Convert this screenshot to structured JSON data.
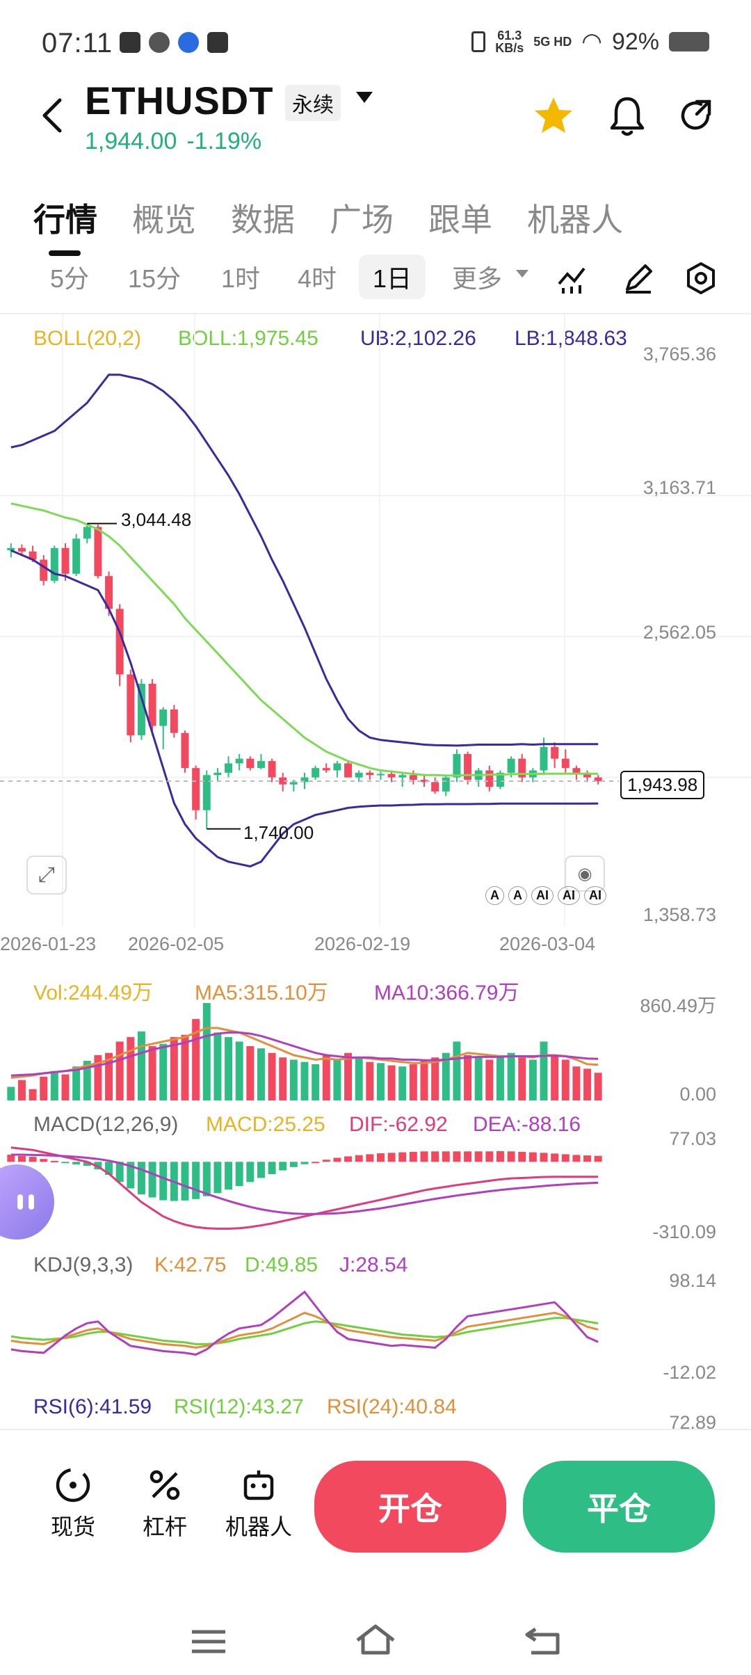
{
  "status_bar": {
    "time": "07:11",
    "net_speed": "61.3",
    "net_unit": "KB/s",
    "net_type": "5G HD",
    "battery": "92%"
  },
  "header": {
    "symbol": "ETHUSDT",
    "contract_type": "永续",
    "last_price": "1,944.00",
    "change_pct": "-1.19%"
  },
  "tabs": [
    "行情",
    "概览",
    "数据",
    "广场",
    "跟单",
    "机器人"
  ],
  "periods": [
    "5分",
    "15分",
    "1时",
    "4时",
    "1日",
    "更多"
  ],
  "main_chart": {
    "indicator": "BOLL(20,2)",
    "boll": "BOLL:1,975.45",
    "ub": "UB:2,102.26",
    "lb": "LB:1,848.63",
    "y_ticks": [
      "3,765.36",
      "3,163.71",
      "2,562.05",
      "1,358.73"
    ],
    "x_ticks": [
      "2026-01-23",
      "2026-02-05",
      "2026-02-19",
      "2026-03-04"
    ],
    "high_label": "3,044.48",
    "low_label": "1,740.00",
    "current_price": "1,943.98",
    "ai_labels": [
      "A",
      "A",
      "AI",
      "AI",
      "AI"
    ]
  },
  "volume": {
    "vol": "Vol:244.49万",
    "ma5": "MA5:315.10万",
    "ma10": "MA10:366.79万",
    "y_max": "860.49万",
    "y_min": "0.00"
  },
  "macd": {
    "name": "MACD(12,26,9)",
    "macd": "MACD:25.25",
    "dif": "DIF:-62.92",
    "dea": "DEA:-88.16",
    "y_max": "77.03",
    "y_min": "-310.09"
  },
  "kdj": {
    "name": "KDJ(9,3,3)",
    "k": "K:42.75",
    "d": "D:49.85",
    "j": "J:28.54",
    "y_max": "98.14",
    "y_min": "-12.02"
  },
  "rsi": {
    "rsi6": "RSI(6):41.59",
    "rsi12": "RSI(12):43.27",
    "rsi24": "RSI(24):40.84",
    "y_max": "72.89"
  },
  "bottom_nav": {
    "spot": "现货",
    "leverage": "杠杆",
    "bot": "机器人",
    "open": "开仓",
    "close": "平仓"
  },
  "colors": {
    "up": "#2ebd85",
    "down": "#f2495e",
    "boll_mid": "#7ed957",
    "boll_band": "#3b2a9e",
    "yellow": "#e6b422",
    "purple": "#b03fbf"
  },
  "chart_data": [
    {
      "type": "candlestick",
      "title": "",
      "x_ticks": [
        "2026-01-23",
        "2026-02-05",
        "2026-02-19",
        "2026-03-04"
      ],
      "ylim": [
        1358.73,
        3765.36
      ],
      "y_ticks": [
        1358.73,
        2562.05,
        3163.71,
        3765.36
      ],
      "candles": [
        [
          2930,
          2960,
          2900,
          2940
        ],
        [
          2940,
          2955,
          2905,
          2925
        ],
        [
          2925,
          2950,
          2880,
          2890
        ],
        [
          2890,
          2910,
          2780,
          2800
        ],
        [
          2800,
          2950,
          2790,
          2940
        ],
        [
          2940,
          2960,
          2800,
          2830
        ],
        [
          2830,
          3000,
          2820,
          2980
        ],
        [
          2980,
          3044.48,
          2960,
          3030
        ],
        [
          3030,
          3040,
          2810,
          2820
        ],
        [
          2820,
          2840,
          2650,
          2680
        ],
        [
          2680,
          2700,
          2350,
          2400
        ],
        [
          2400,
          2420,
          2110,
          2140
        ],
        [
          2140,
          2380,
          2120,
          2360
        ],
        [
          2360,
          2380,
          2140,
          2180
        ],
        [
          2180,
          2260,
          2080,
          2250
        ],
        [
          2250,
          2270,
          2130,
          2150
        ],
        [
          2150,
          2160,
          1980,
          2000
        ],
        [
          2000,
          2010,
          1780,
          1820
        ],
        [
          1820,
          1990,
          1740,
          1970
        ],
        [
          1970,
          2000,
          1940,
          1980
        ],
        [
          1980,
          2050,
          1960,
          2020
        ],
        [
          2020,
          2060,
          1990,
          2040
        ],
        [
          2040,
          2050,
          1990,
          2000
        ],
        [
          2000,
          2060,
          1995,
          2030
        ],
        [
          2030,
          2040,
          1940,
          1960
        ],
        [
          1960,
          1980,
          1900,
          1930
        ],
        [
          1930,
          1950,
          1900,
          1940
        ],
        [
          1940,
          1980,
          1910,
          1960
        ],
        [
          1960,
          2010,
          1950,
          2000
        ],
        [
          2000,
          2020,
          1980,
          1990
        ],
        [
          1990,
          2030,
          1960,
          2020
        ],
        [
          2020,
          2030,
          1960,
          1960
        ],
        [
          1960,
          1990,
          1940,
          1980
        ],
        [
          1980,
          1990,
          1950,
          1970
        ],
        [
          1970,
          1985,
          1950,
          1975
        ],
        [
          1975,
          1990,
          1940,
          1960
        ],
        [
          1960,
          1980,
          1920,
          1970
        ],
        [
          1970,
          1990,
          1930,
          1950
        ],
        [
          1950,
          1975,
          1920,
          1940
        ],
        [
          1940,
          1960,
          1890,
          1900
        ],
        [
          1900,
          1970,
          1880,
          1960
        ],
        [
          1960,
          2080,
          1940,
          2060
        ],
        [
          2060,
          2070,
          1930,
          1950
        ],
        [
          1950,
          2000,
          1920,
          1990
        ],
        [
          1990,
          2010,
          1900,
          1920
        ],
        [
          1920,
          1990,
          1910,
          1980
        ],
        [
          1980,
          2050,
          1960,
          2040
        ],
        [
          2040,
          2060,
          1940,
          1960
        ],
        [
          1960,
          2000,
          1940,
          1990
        ],
        [
          1990,
          2130,
          1970,
          2090
        ],
        [
          2090,
          2110,
          2000,
          2040
        ],
        [
          2040,
          2080,
          1980,
          2000
        ],
        [
          2000,
          2010,
          1950,
          1980
        ],
        [
          1980,
          1990,
          1940,
          1960
        ],
        [
          1960,
          1970,
          1930,
          1944
        ]
      ],
      "boll_upper": [
        3370,
        3380,
        3400,
        3420,
        3440,
        3480,
        3520,
        3560,
        3620,
        3680,
        3680,
        3670,
        3660,
        3640,
        3610,
        3570,
        3520,
        3460,
        3390,
        3320,
        3250,
        3170,
        3080,
        2990,
        2890,
        2800,
        2700,
        2600,
        2490,
        2380,
        2290,
        2210,
        2160,
        2130,
        2120,
        2115,
        2110,
        2105,
        2100,
        2098,
        2097,
        2096,
        2098,
        2100,
        2100,
        2100,
        2100,
        2102,
        2100,
        2102,
        2102,
        2102,
        2102,
        2102,
        2102.26
      ],
      "boll_mid": [
        3130,
        3120,
        3110,
        3100,
        3085,
        3070,
        3060,
        3040,
        3020,
        2990,
        2950,
        2900,
        2850,
        2800,
        2750,
        2700,
        2640,
        2590,
        2540,
        2490,
        2440,
        2390,
        2340,
        2290,
        2250,
        2210,
        2170,
        2130,
        2100,
        2070,
        2050,
        2030,
        2015,
        2000,
        1990,
        1985,
        1980,
        1975,
        1970,
        1970,
        1968,
        1968,
        1970,
        1970,
        1972,
        1972,
        1974,
        1975,
        1975,
        1976,
        1976,
        1976,
        1976,
        1976,
        1975.45
      ],
      "boll_lower": [
        2930,
        2910,
        2890,
        2860,
        2830,
        2820,
        2800,
        2780,
        2760,
        2680,
        2580,
        2450,
        2300,
        2150,
        2000,
        1850,
        1760,
        1700,
        1660,
        1620,
        1600,
        1590,
        1580,
        1600,
        1660,
        1720,
        1760,
        1780,
        1800,
        1810,
        1820,
        1830,
        1835,
        1838,
        1840,
        1840,
        1842,
        1843,
        1845,
        1845,
        1846,
        1846,
        1846,
        1847,
        1847,
        1848,
        1848,
        1848,
        1848,
        1848,
        1848,
        1848,
        1848,
        1848,
        1848.63
      ]
    },
    {
      "type": "bar",
      "title": "",
      "ylim": [
        0,
        860.49
      ],
      "values": [
        120,
        180,
        100,
        210,
        260,
        230,
        300,
        350,
        400,
        420,
        520,
        560,
        610,
        480,
        500,
        560,
        580,
        720,
        860.49,
        600,
        560,
        520,
        480,
        460,
        420,
        380,
        360,
        340,
        320,
        400,
        360,
        420,
        380,
        340,
        330,
        310,
        300,
        320,
        360,
        380,
        420,
        520,
        400,
        380,
        360,
        400,
        420,
        380,
        360,
        520,
        400,
        360,
        300,
        280,
        244.49
      ],
      "ma5": [
        200,
        210,
        220,
        240,
        250,
        260,
        280,
        310,
        330,
        360,
        400,
        440,
        480,
        500,
        520,
        540,
        560,
        600,
        640,
        640,
        620,
        600,
        560,
        520,
        480,
        440,
        400,
        380,
        360,
        370,
        360,
        370,
        380,
        370,
        360,
        350,
        340,
        330,
        330,
        340,
        360,
        390,
        420,
        410,
        400,
        390,
        390,
        390,
        380,
        400,
        400,
        390,
        360,
        320,
        315.1
      ],
      "ma10": [
        220,
        225,
        230,
        240,
        250,
        260,
        270,
        290,
        310,
        330,
        360,
        390,
        420,
        450,
        470,
        490,
        510,
        540,
        570,
        590,
        600,
        600,
        590,
        570,
        540,
        510,
        480,
        450,
        420,
        400,
        390,
        380,
        380,
        380,
        370,
        370,
        360,
        360,
        355,
        355,
        360,
        370,
        380,
        385,
        385,
        385,
        390,
        390,
        390,
        395,
        395,
        390,
        380,
        370,
        366.79
      ]
    },
    {
      "type": "bar",
      "title": "",
      "ylim": [
        -310.09,
        77.03
      ],
      "dif": [
        60,
        55,
        50,
        40,
        30,
        20,
        10,
        0,
        -20,
        -50,
        -90,
        -130,
        -170,
        -200,
        -230,
        -250,
        -265,
        -275,
        -280,
        -282,
        -282,
        -280,
        -275,
        -268,
        -260,
        -250,
        -240,
        -230,
        -220,
        -210,
        -200,
        -190,
        -180,
        -170,
        -160,
        -150,
        -140,
        -130,
        -120,
        -112,
        -105,
        -98,
        -92,
        -86,
        -80,
        -74,
        -70,
        -68,
        -66,
        -64,
        -63,
        -63,
        -62.92,
        -62.92,
        -62.92
      ],
      "dea": [
        30,
        30,
        29,
        28,
        26,
        24,
        21,
        17,
        12,
        5,
        -5,
        -18,
        -33,
        -50,
        -68,
        -85,
        -102,
        -118,
        -135,
        -150,
        -165,
        -178,
        -190,
        -200,
        -208,
        -214,
        -218,
        -220,
        -220,
        -219,
        -217,
        -213,
        -208,
        -202,
        -196,
        -188,
        -180,
        -172,
        -164,
        -156,
        -149,
        -142,
        -136,
        -130,
        -124,
        -119,
        -114,
        -110,
        -106,
        -102,
        -98,
        -95,
        -92,
        -90,
        -88.16
      ],
      "macd": [
        30,
        25,
        21,
        12,
        4,
        -4,
        -11,
        -17,
        -32,
        -55,
        -85,
        -112,
        -137,
        -150,
        -162,
        -165,
        -163,
        -157,
        -145,
        -132,
        -117,
        -102,
        -85,
        -68,
        -52,
        -36,
        -22,
        -10,
        0,
        9,
        17,
        23,
        28,
        32,
        36,
        38,
        40,
        42,
        44,
        44,
        44,
        44,
        44,
        44,
        44,
        45,
        44,
        42,
        40,
        38,
        35,
        32,
        29,
        27,
        25.25
      ]
    },
    {
      "type": "line",
      "title": "",
      "ylim": [
        -12.02,
        98.14
      ],
      "k": [
        30,
        28,
        27,
        26,
        30,
        34,
        38,
        42,
        44,
        40,
        36,
        32,
        30,
        28,
        26,
        25,
        24,
        22,
        24,
        28,
        32,
        36,
        38,
        40,
        44,
        50,
        56,
        62,
        58,
        52,
        46,
        42,
        40,
        38,
        36,
        34,
        33,
        32,
        31,
        30,
        34,
        40,
        46,
        48,
        50,
        52,
        54,
        56,
        58,
        60,
        62,
        58,
        52,
        46,
        42.75
      ],
      "d": [
        35,
        33,
        32,
        31,
        32,
        33,
        35,
        38,
        40,
        40,
        38,
        36,
        34,
        32,
        30,
        29,
        28,
        26,
        26,
        27,
        29,
        32,
        34,
        36,
        38,
        42,
        46,
        50,
        52,
        51,
        49,
        47,
        45,
        43,
        41,
        39,
        37,
        36,
        35,
        34,
        35,
        37,
        40,
        42,
        44,
        46,
        48,
        50,
        52,
        54,
        56,
        56,
        54,
        52,
        49.85
      ],
      "j": [
        20,
        18,
        17,
        16,
        26,
        36,
        44,
        50,
        52,
        40,
        32,
        24,
        22,
        20,
        18,
        17,
        16,
        14,
        20,
        30,
        38,
        44,
        46,
        48,
        56,
        66,
        76,
        86,
        70,
        54,
        40,
        32,
        30,
        28,
        26,
        24,
        25,
        24,
        23,
        22,
        32,
        46,
        58,
        60,
        62,
        64,
        66,
        68,
        70,
        72,
        74,
        62,
        48,
        34,
        28.54
      ]
    }
  ]
}
